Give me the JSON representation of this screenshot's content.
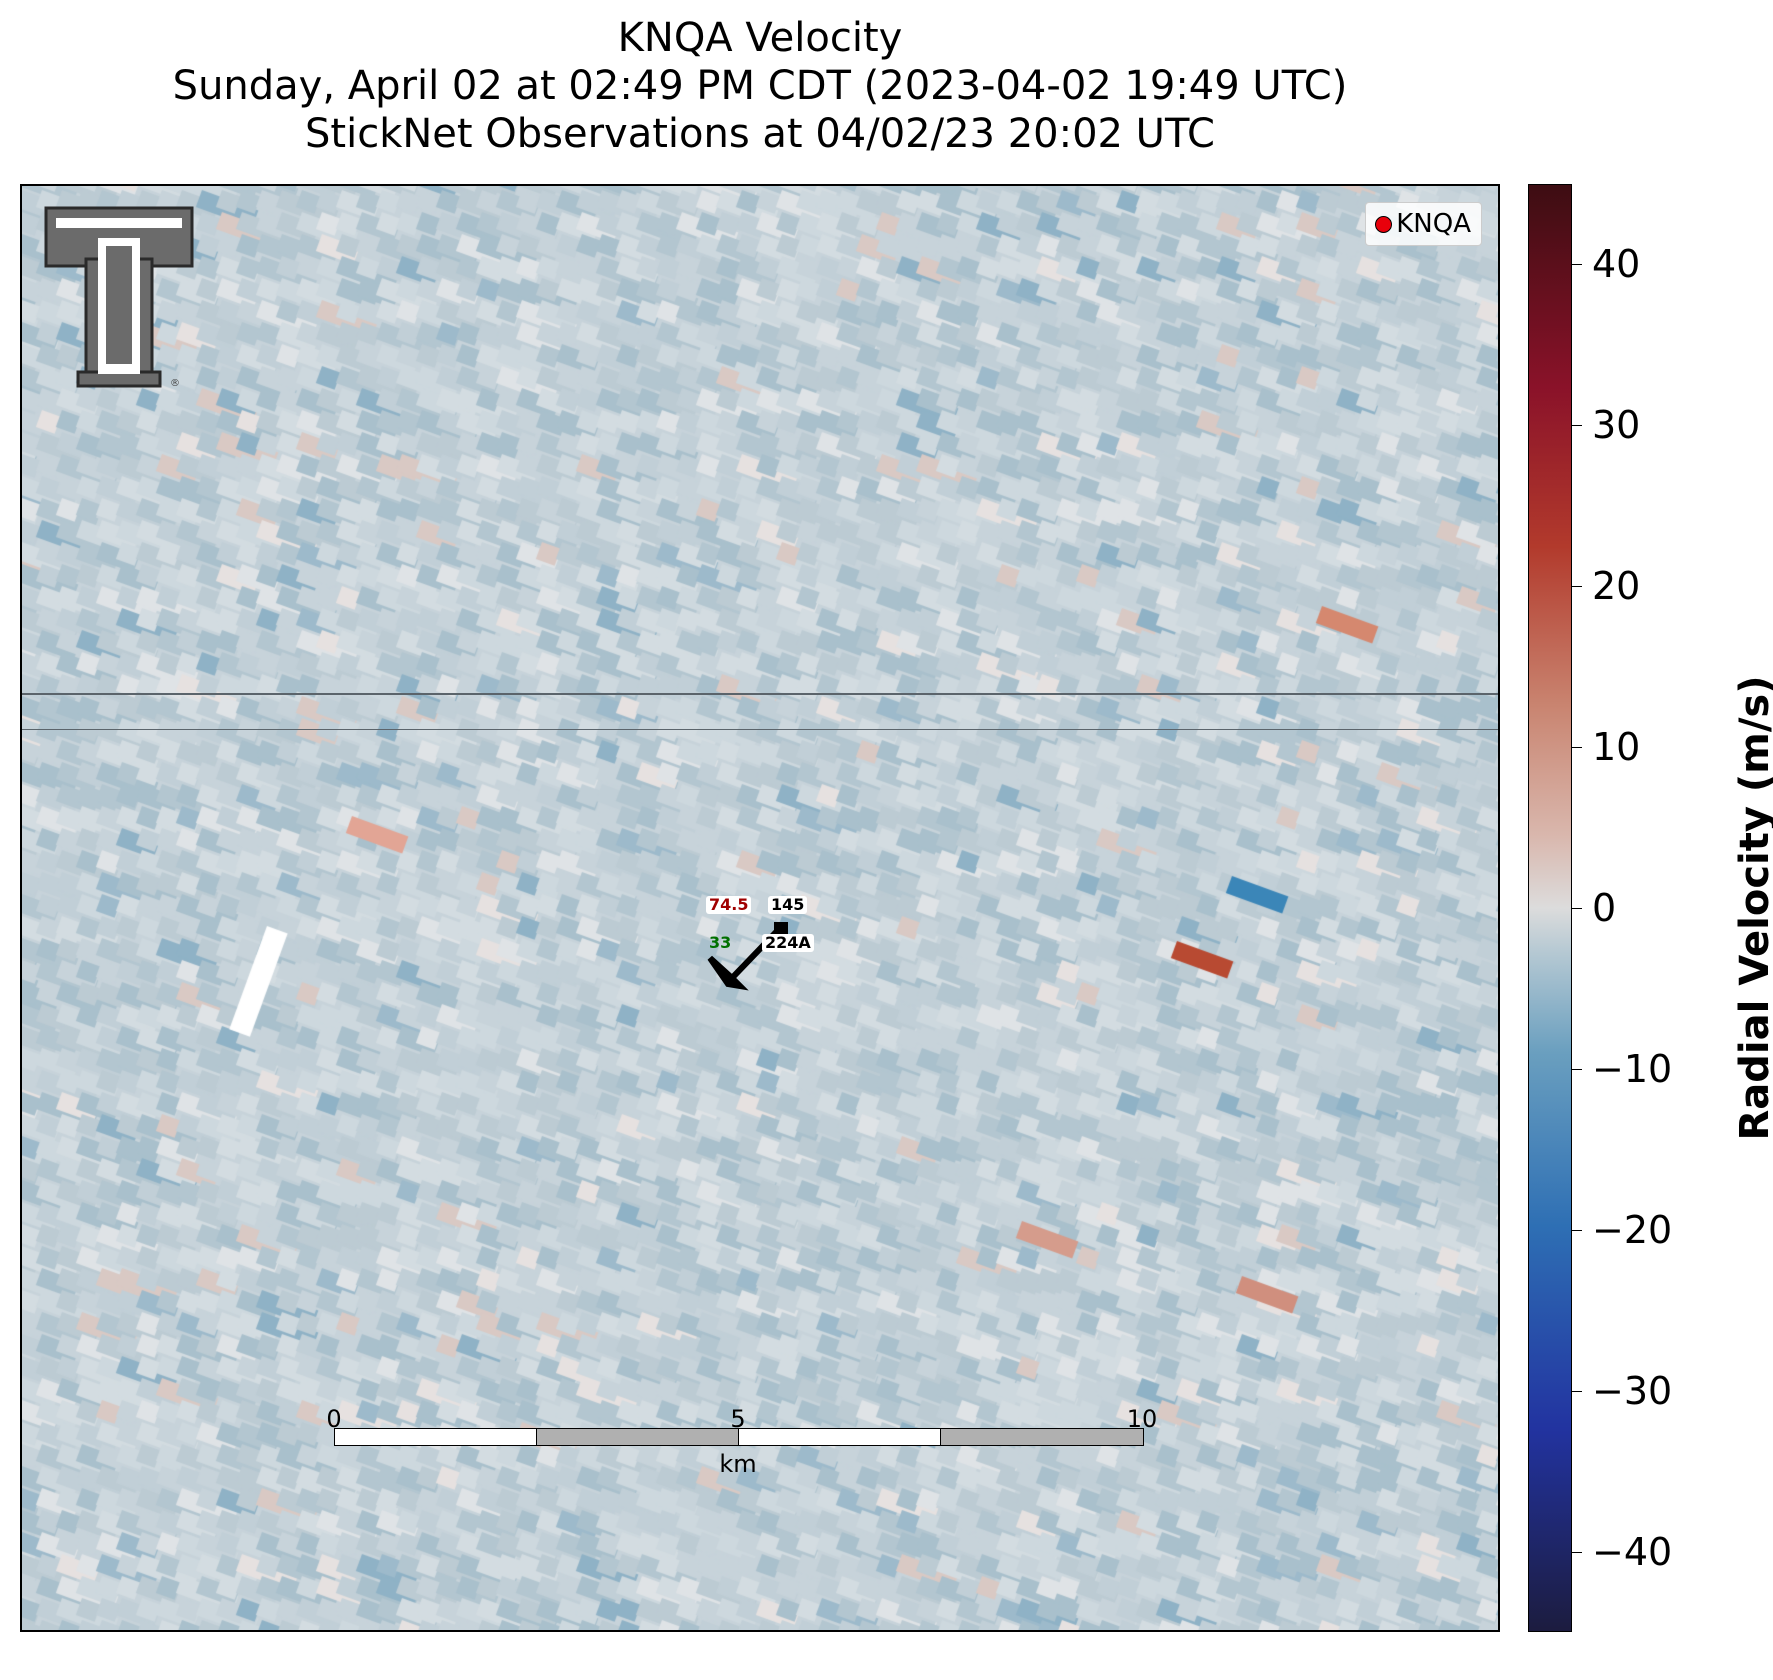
{
  "title": {
    "line1": "KNQA Velocity",
    "line2": "Sunday, April 02 at 02:49 PM CDT (2023-04-02 19:49 UTC)",
    "line3": "StickNet Observations at 04/02/23 20:02 UTC"
  },
  "legend": {
    "label": "KNQA",
    "marker_color": "#e8000b"
  },
  "station": {
    "temperature": "74.5",
    "temperature_color": "#a00000",
    "pressure": "145",
    "dewpoint": "33",
    "dewpoint_color": "#007000",
    "id": "224A",
    "barb_color": "#000000"
  },
  "scale_bar": {
    "ticks": [
      "0",
      "5",
      "10"
    ],
    "unit": "km"
  },
  "colorbar": {
    "label": "Radial Velocity (m/s)",
    "ticks": [
      "40",
      "30",
      "20",
      "10",
      "0",
      "−10",
      "−20",
      "−30",
      "−40"
    ],
    "range": [
      -45,
      45
    ]
  },
  "logo": {
    "name": "texas-tech-double-t-logo"
  }
}
